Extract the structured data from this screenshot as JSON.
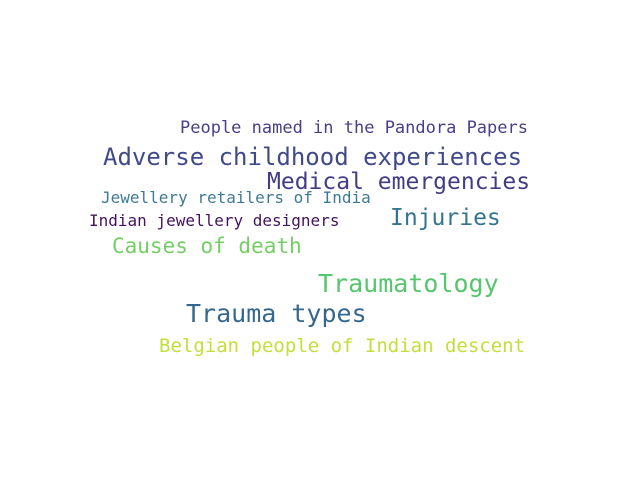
{
  "words": [
    {
      "text": "People named in the Pandora Papers",
      "color": "#4a3e85"
    },
    {
      "text": "Adverse childhood experiences",
      "color": "#404a8a"
    },
    {
      "text": "Medical emergencies",
      "color": "#433c84"
    },
    {
      "text": "Jewellery retailers of India",
      "color": "#3d7a98"
    },
    {
      "text": "Indian jewellery designers",
      "color": "#46125d"
    },
    {
      "text": "Injuries",
      "color": "#33758f"
    },
    {
      "text": "Causes of death",
      "color": "#74cf63"
    },
    {
      "text": "Traumatology",
      "color": "#56c66d"
    },
    {
      "text": "Trauma types",
      "color": "#36688d"
    },
    {
      "text": "Belgian people of Indian descent",
      "color": "#c3df3b"
    }
  ]
}
